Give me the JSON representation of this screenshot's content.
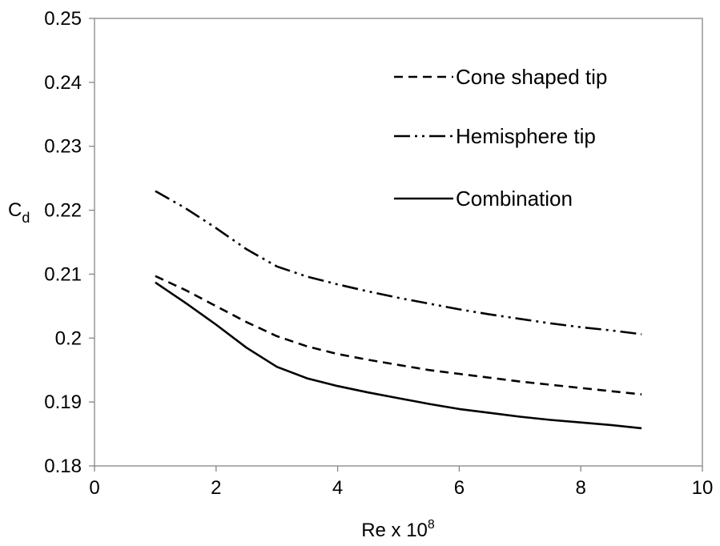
{
  "chart_data": {
    "type": "line",
    "xlabel": "Re x 10",
    "xlabel_superscript": "8",
    "ylabel": "C",
    "ylabel_subscript": "d",
    "xlim": [
      0,
      10
    ],
    "ylim": [
      0.18,
      0.25
    ],
    "x_ticks": [
      0,
      2,
      4,
      6,
      8,
      10
    ],
    "y_ticks": [
      0.18,
      0.19,
      0.2,
      0.21,
      0.22,
      0.23,
      0.24,
      0.25
    ],
    "x_tick_labels": [
      "0",
      "2",
      "4",
      "6",
      "8",
      "10"
    ],
    "y_tick_labels": [
      "0.18",
      "0.19",
      "0.2",
      "0.21",
      "0.22",
      "0.23",
      "0.24",
      "0.25"
    ],
    "grid": false,
    "legend_position": "top-right",
    "series": [
      {
        "name": "Cone shaped tip",
        "line_style": "dashed",
        "color": "#000000",
        "x": [
          1,
          1.5,
          2,
          2.5,
          3,
          3.5,
          4,
          4.5,
          5,
          5.5,
          6,
          6.5,
          7,
          7.5,
          8,
          8.5,
          9
        ],
        "y": [
          0.2097,
          0.2075,
          0.205,
          0.2025,
          0.2003,
          0.1987,
          0.1975,
          0.1966,
          0.1958,
          0.195,
          0.1944,
          0.1938,
          0.1932,
          0.1927,
          0.1922,
          0.1917,
          0.1912
        ]
      },
      {
        "name": "Hemisphere tip",
        "line_style": "dash-dot-dot",
        "color": "#000000",
        "x": [
          1,
          1.5,
          2,
          2.5,
          3,
          3.5,
          4,
          4.5,
          5,
          5.5,
          6,
          6.5,
          7,
          7.5,
          8,
          8.5,
          9
        ],
        "y": [
          0.223,
          0.2203,
          0.2172,
          0.2139,
          0.2112,
          0.2096,
          0.2084,
          0.2073,
          0.2063,
          0.2054,
          0.2045,
          0.2037,
          0.203,
          0.2023,
          0.2017,
          0.2012,
          0.2006
        ]
      },
      {
        "name": "Combination",
        "line_style": "solid",
        "color": "#000000",
        "x": [
          1,
          1.5,
          2,
          2.5,
          3,
          3.5,
          4,
          4.5,
          5,
          5.5,
          6,
          6.5,
          7,
          7.5,
          8,
          8.5,
          9
        ],
        "y": [
          0.2087,
          0.2055,
          0.2021,
          0.1985,
          0.1955,
          0.1937,
          0.1925,
          0.1915,
          0.1906,
          0.1897,
          0.1889,
          0.1883,
          0.1877,
          0.1872,
          0.1868,
          0.1864,
          0.1859
        ]
      }
    ]
  }
}
